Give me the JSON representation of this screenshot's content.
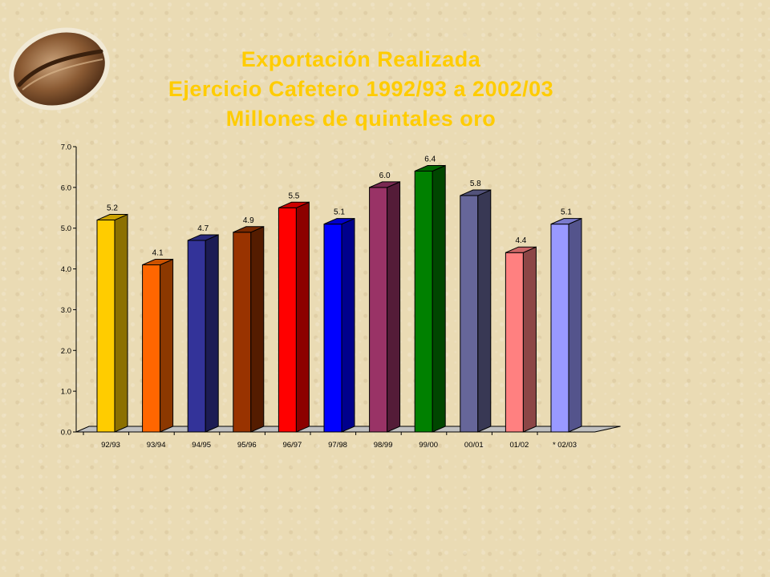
{
  "title": {
    "line1": "Exportación Realizada",
    "line2": "Ejercicio Cafetero 1992/93 a 2002/03",
    "line3": "Millones de quintales oro"
  },
  "chart_data": {
    "type": "bar",
    "style": "3d-column",
    "categories": [
      "92/93",
      "93/94",
      "94/95",
      "95/96",
      "96/97",
      "97/98",
      "98/99",
      "99/00",
      "00/01",
      "01/02",
      "* 02/03"
    ],
    "values": [
      5.2,
      4.1,
      4.7,
      4.9,
      5.5,
      5.1,
      6.0,
      6.4,
      5.8,
      4.4,
      5.1
    ],
    "data_labels": [
      "5.2",
      "4.1",
      "4.7",
      "4.9",
      "5.5",
      "5.1",
      "6.0",
      "6.4",
      "5.8",
      "4.4",
      "5.1"
    ],
    "bar_colors": [
      "#ffcc00",
      "#ff6600",
      "#333399",
      "#993300",
      "#ff0000",
      "#0000ff",
      "#993366",
      "#008000",
      "#666699",
      "#ff8080",
      "#9999ff"
    ],
    "ylim": [
      0,
      7
    ],
    "yticks": [
      "0.0",
      "1.0",
      "2.0",
      "3.0",
      "4.0",
      "5.0",
      "6.0",
      "7.0"
    ],
    "xlabel": "",
    "ylabel": "",
    "grid": false,
    "legend": "none"
  },
  "colors": {
    "title": "#ffcc00",
    "axis": "#000000"
  }
}
